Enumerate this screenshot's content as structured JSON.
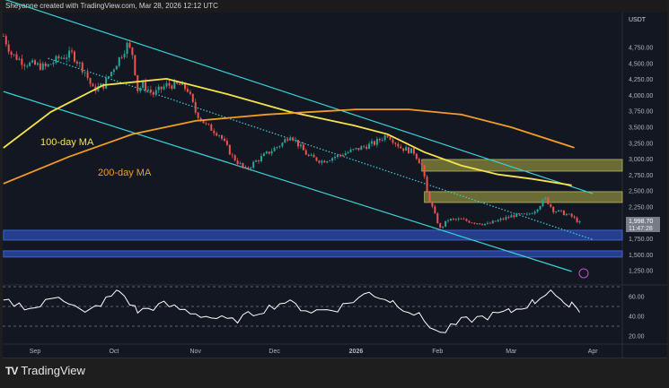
{
  "header": {
    "credit": "Sheyanne created with TradingView.com, Mar 28, 2026 12:12 UTC"
  },
  "footer": {
    "brand": "TradingView",
    "logo_icon": "tradingview-logo-icon"
  },
  "colors": {
    "background": "#131722",
    "up": "#26a69a",
    "down": "#ef5350",
    "ma100": "#f5e34b",
    "ma200": "#f39c24",
    "channel": "#3ad1d6",
    "supply_zone": "#8a8a3c",
    "demand_zone": "#2c4aa8",
    "rsi": "#ffffff"
  },
  "chart_data": {
    "type": "candlestick",
    "currency": "USDT",
    "y_ticks": [
      "4,750.00",
      "4,500.00",
      "4,250.00",
      "4,000.00",
      "3,750.00",
      "3,500.00",
      "3,250.00",
      "3,000.00",
      "2,750.00",
      "2,500.00",
      "2,250.00",
      "1,750.00",
      "1,500.00",
      "1,250.00"
    ],
    "y_tick_values": [
      4750,
      4500,
      4250,
      4000,
      3750,
      3500,
      3250,
      3000,
      2750,
      2500,
      2250,
      1750,
      1500,
      1250
    ],
    "x_ticks": [
      {
        "label": "Sep",
        "date": "2025-09-01"
      },
      {
        "label": "Oct",
        "date": "2025-10-01"
      },
      {
        "label": "Nov",
        "date": "2025-11-01"
      },
      {
        "label": "Dec",
        "date": "2025-12-01"
      },
      {
        "label": "2026",
        "date": "2026-01-01"
      },
      {
        "label": "Feb",
        "date": "2026-02-01"
      },
      {
        "label": "Mar",
        "date": "2026-03-01"
      },
      {
        "label": "Apr",
        "date": "2026-04-01"
      }
    ],
    "last_price": "1,998.70",
    "countdown": "11:47:28",
    "close_path": [
      [
        "2025-08-20",
        4930
      ],
      [
        "2025-08-23",
        4650
      ],
      [
        "2025-08-28",
        4510
      ],
      [
        "2025-09-05",
        4440
      ],
      [
        "2025-09-10",
        4580
      ],
      [
        "2025-09-15",
        4650
      ],
      [
        "2025-09-20",
        4370
      ],
      [
        "2025-09-23",
        4090
      ],
      [
        "2025-09-27",
        4160
      ],
      [
        "2025-10-02",
        4510
      ],
      [
        "2025-10-06",
        4790
      ],
      [
        "2025-10-08",
        4650
      ],
      [
        "2025-10-10",
        4090
      ],
      [
        "2025-10-12",
        4160
      ],
      [
        "2025-10-16",
        4020
      ],
      [
        "2025-10-21",
        4160
      ],
      [
        "2025-10-26",
        4160
      ],
      [
        "2025-10-29",
        4090
      ],
      [
        "2025-11-01",
        3740
      ],
      [
        "2025-11-05",
        3530
      ],
      [
        "2025-11-10",
        3390
      ],
      [
        "2025-11-15",
        3040
      ],
      [
        "2025-11-20",
        2830
      ],
      [
        "2025-11-24",
        2970
      ],
      [
        "2025-11-29",
        3110
      ],
      [
        "2025-12-04",
        3250
      ],
      [
        "2025-12-07",
        3390
      ],
      [
        "2025-12-11",
        3180
      ],
      [
        "2025-12-14",
        3040
      ],
      [
        "2025-12-19",
        2970
      ],
      [
        "2025-12-24",
        3040
      ],
      [
        "2025-12-29",
        3110
      ],
      [
        "2026-01-03",
        3180
      ],
      [
        "2026-01-08",
        3250
      ],
      [
        "2026-01-13",
        3390
      ],
      [
        "2026-01-18",
        3180
      ],
      [
        "2026-01-23",
        3110
      ],
      [
        "2026-01-26",
        2900
      ],
      [
        "2026-01-28",
        2480
      ],
      [
        "2026-01-31",
        2120
      ],
      [
        "2026-02-02",
        1910
      ],
      [
        "2026-02-05",
        2050
      ],
      [
        "2026-02-10",
        2050
      ],
      [
        "2026-02-15",
        2010
      ],
      [
        "2026-02-20",
        1980
      ],
      [
        "2026-02-25",
        2050
      ],
      [
        "2026-03-02",
        2120
      ],
      [
        "2026-03-07",
        2120
      ],
      [
        "2026-03-10",
        2200
      ],
      [
        "2026-03-14",
        2380
      ],
      [
        "2026-03-17",
        2200
      ],
      [
        "2026-03-21",
        2150
      ],
      [
        "2026-03-24",
        2100
      ],
      [
        "2026-03-27",
        1999
      ]
    ],
    "ma100": {
      "label": "100-day MA",
      "points": [
        [
          "2025-08-20",
          3177
        ],
        [
          "2025-09-07",
          3740
        ],
        [
          "2025-09-27",
          4160
        ],
        [
          "2025-10-21",
          4260
        ],
        [
          "2025-11-13",
          4020
        ],
        [
          "2025-12-07",
          3740
        ],
        [
          "2025-12-31",
          3530
        ],
        [
          "2026-01-13",
          3390
        ],
        [
          "2026-01-27",
          3110
        ],
        [
          "2026-02-10",
          2900
        ],
        [
          "2026-02-24",
          2760
        ],
        [
          "2026-03-09",
          2690
        ],
        [
          "2026-03-24",
          2590
        ]
      ]
    },
    "ma200": {
      "label": "200-day MA",
      "points": [
        [
          "2025-08-20",
          2616
        ],
        [
          "2025-09-14",
          3040
        ],
        [
          "2025-10-08",
          3390
        ],
        [
          "2025-11-01",
          3600
        ],
        [
          "2025-11-28",
          3700
        ],
        [
          "2026-01-01",
          3780
        ],
        [
          "2026-01-21",
          3780
        ],
        [
          "2026-02-10",
          3700
        ],
        [
          "2026-03-01",
          3500
        ],
        [
          "2026-03-25",
          3180
        ]
      ]
    },
    "channel": {
      "upper": [
        [
          "2025-08-20",
          5510
        ],
        [
          "2026-04-01",
          2460
        ]
      ],
      "middle": [
        [
          "2025-09-06",
          4580
        ],
        [
          "2026-04-01",
          1740
        ]
      ],
      "lower": [
        [
          "2025-08-20",
          4060
        ],
        [
          "2026-03-24",
          1240
        ]
      ]
    },
    "zones": [
      {
        "kind": "supply",
        "top": 2995,
        "bottom": 2812,
        "from": "2026-01-26"
      },
      {
        "kind": "supply",
        "top": 2490,
        "bottom": 2321,
        "from": "2026-01-27"
      },
      {
        "kind": "demand",
        "top": 1886,
        "bottom": 1731,
        "from": "2025-08-20"
      },
      {
        "kind": "demand",
        "top": 1563,
        "bottom": 1465,
        "from": "2025-08-20"
      }
    ],
    "rsi": {
      "y_ticks": [
        "60.00",
        "40.00",
        "20.00"
      ],
      "y_tick_values": [
        60,
        40,
        20
      ],
      "levels": [
        70,
        50,
        30
      ],
      "points": [
        [
          "2025-08-20",
          55
        ],
        [
          "2025-09-01",
          48
        ],
        [
          "2025-09-10",
          62
        ],
        [
          "2025-09-20",
          42
        ],
        [
          "2025-10-03",
          66
        ],
        [
          "2025-10-10",
          45
        ],
        [
          "2025-10-20",
          52
        ],
        [
          "2025-11-05",
          40
        ],
        [
          "2025-11-15",
          35
        ],
        [
          "2025-11-25",
          45
        ],
        [
          "2025-12-05",
          55
        ],
        [
          "2025-12-15",
          45
        ],
        [
          "2025-12-25",
          48
        ],
        [
          "2026-01-06",
          64
        ],
        [
          "2026-01-15",
          55
        ],
        [
          "2026-01-25",
          40
        ],
        [
          "2026-02-02",
          22
        ],
        [
          "2026-02-10",
          35
        ],
        [
          "2026-02-20",
          40
        ],
        [
          "2026-03-01",
          45
        ],
        [
          "2026-03-10",
          55
        ],
        [
          "2026-03-16",
          68
        ],
        [
          "2026-03-21",
          50
        ],
        [
          "2026-03-24",
          55
        ],
        [
          "2026-03-27",
          44
        ]
      ]
    }
  }
}
